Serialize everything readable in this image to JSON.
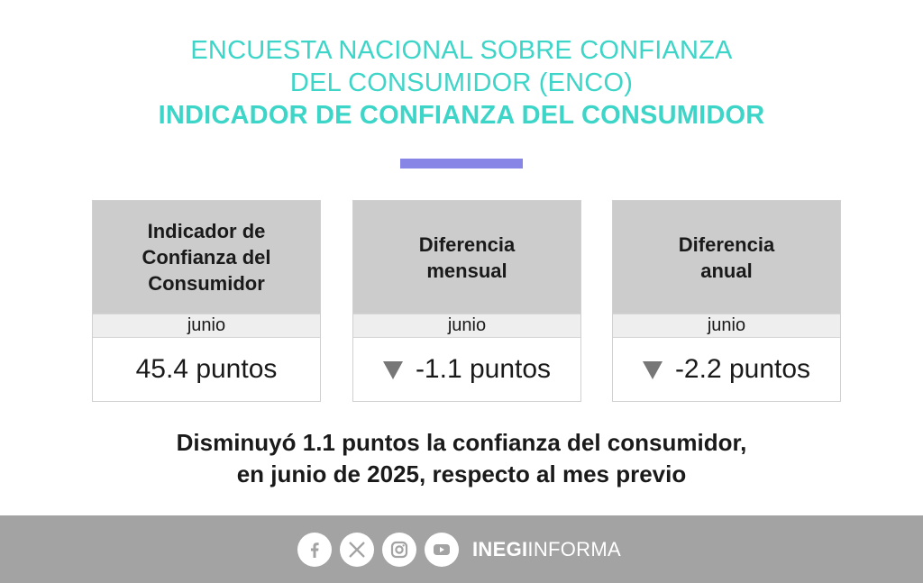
{
  "header": {
    "title_line1": "ENCUESTA NACIONAL SOBRE CONFIANZA",
    "title_line2": "DEL CONSUMIDOR (ENCO)",
    "subtitle": "INDICADOR DE CONFIANZA DEL CONSUMIDOR"
  },
  "colors": {
    "title": "#3dd5c8",
    "accent_bar": "#8785e6",
    "card_header": "#cccccc",
    "footer": "#a3a3a3"
  },
  "cards": [
    {
      "title": "Indicador de\nConfianza del\nConsumidor",
      "period": "junio",
      "value": "45.4 puntos",
      "trend": "none"
    },
    {
      "title": "Diferencia\nmensual",
      "period": "junio",
      "value": "-1.1 puntos",
      "trend": "down"
    },
    {
      "title": "Diferencia\nanual",
      "period": "junio",
      "value": "-2.2 puntos",
      "trend": "down"
    }
  ],
  "summary": {
    "line1": "Disminuyó 1.1 puntos la confianza del consumidor,",
    "line2": "en junio de 2025, respecto al mes previo"
  },
  "footer": {
    "social_icons": [
      "facebook-icon",
      "x-icon",
      "instagram-icon",
      "youtube-icon"
    ],
    "brand_bold": "INEGI",
    "brand_regular": "INFORMA"
  }
}
